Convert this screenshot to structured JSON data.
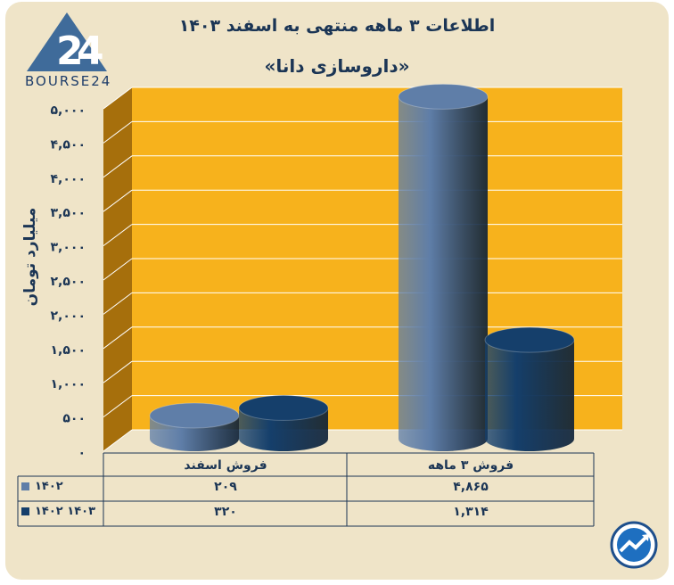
{
  "title_line1": "اطلاعات ۳ ماهه منتهی به اسفند ۱۴۰۳",
  "title_line2": "«داروسازی دانا»",
  "logo_text": "BOURSE24",
  "colors": {
    "panel": "#efe4c8",
    "plot_back": "#f7b21c",
    "plot_side": "#a66f0c",
    "series1402": "#5f7ea8",
    "series1403": "#153f6b",
    "text": "#1b3555"
  },
  "chart_data": {
    "type": "bar",
    "ylabel": "میلیارد تومان",
    "ylim": [
      0,
      5000
    ],
    "yticks": [
      "۰",
      "۵۰۰",
      "۱,۰۰۰",
      "۱,۵۰۰",
      "۲,۰۰۰",
      "۲,۵۰۰",
      "۳,۰۰۰",
      "۳,۵۰۰",
      "۴,۰۰۰",
      "۴,۵۰۰",
      "۵,۰۰۰"
    ],
    "ytick_values": [
      0,
      500,
      1000,
      1500,
      2000,
      2500,
      3000,
      3500,
      4000,
      4500,
      5000
    ],
    "categories": [
      "فروش اسفند",
      "فروش ۳ ماهه"
    ],
    "series": [
      {
        "name": "۱۴۰۲",
        "values": [
          209,
          4865
        ],
        "labels": [
          "۲۰۹",
          "۴,۸۶۵"
        ]
      },
      {
        "name": "۱۴۰۲ ۱۴۰۳",
        "values": [
          320,
          1314
        ],
        "labels": [
          "۳۲۰",
          "۱,۳۱۴"
        ]
      }
    ],
    "grid": true,
    "legend": "bottom-left (in data table)"
  }
}
